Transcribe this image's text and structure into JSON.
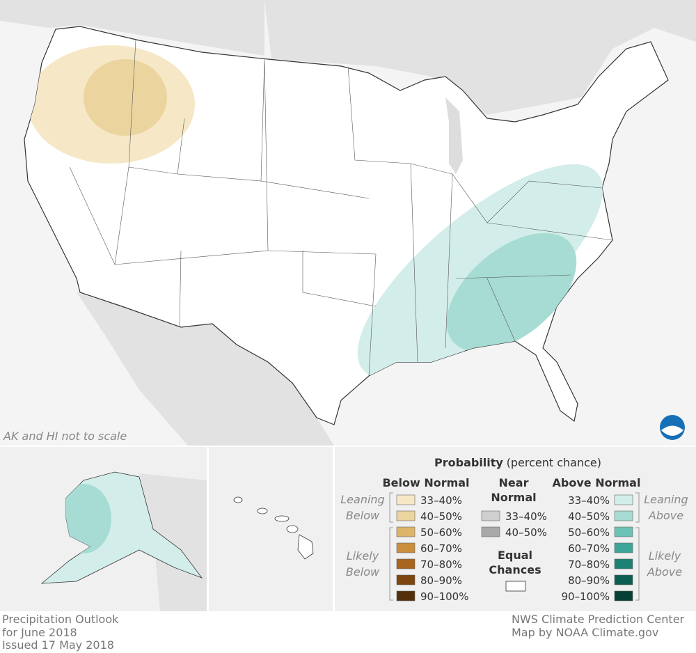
{
  "map": {
    "note": "AK and HI not to scale"
  },
  "legend": {
    "title": "Probability",
    "title_suffix": "(percent chance)",
    "below": {
      "heading": "Below Normal",
      "leaning": [
        "Leaning",
        "Below"
      ],
      "likely": [
        "Likely",
        "Below"
      ],
      "items": [
        {
          "label": "33–40%",
          "color": "#f6e8c6"
        },
        {
          "label": "40–50%",
          "color": "#ecd49e"
        },
        {
          "label": "50–60%",
          "color": "#dcb46a"
        },
        {
          "label": "60–70%",
          "color": "#c98f3e"
        },
        {
          "label": "70–80%",
          "color": "#a8651e"
        },
        {
          "label": "80–90%",
          "color": "#7e4510"
        },
        {
          "label": "90–100%",
          "color": "#54300a"
        }
      ]
    },
    "near": {
      "heading": [
        "Near",
        "Normal"
      ],
      "items": [
        {
          "label": "33–40%",
          "color": "#cfcfcf"
        },
        {
          "label": "40–50%",
          "color": "#a8a8a8"
        }
      ]
    },
    "equal": {
      "heading": [
        "Equal",
        "Chances"
      ],
      "color": "#ffffff"
    },
    "above": {
      "heading": "Above Normal",
      "leaning": [
        "Leaning",
        "Above"
      ],
      "likely": [
        "Likely",
        "Above"
      ],
      "items": [
        {
          "label": "33–40%",
          "color": "#d3eeea"
        },
        {
          "label": "40–50%",
          "color": "#a6dcd3"
        },
        {
          "label": "50–60%",
          "color": "#6cc3b5"
        },
        {
          "label": "60–70%",
          "color": "#3da597"
        },
        {
          "label": "70–80%",
          "color": "#1d8273"
        },
        {
          "label": "80–90%",
          "color": "#0d5f52"
        },
        {
          "label": "90–100%",
          "color": "#063f36"
        }
      ]
    }
  },
  "footer": {
    "left": [
      "Precipitation Outlook",
      "for June 2018",
      "Issued 17 May 2018"
    ],
    "right": [
      "NWS Climate Prediction Center",
      "Map by NOAA Climate.gov"
    ]
  }
}
